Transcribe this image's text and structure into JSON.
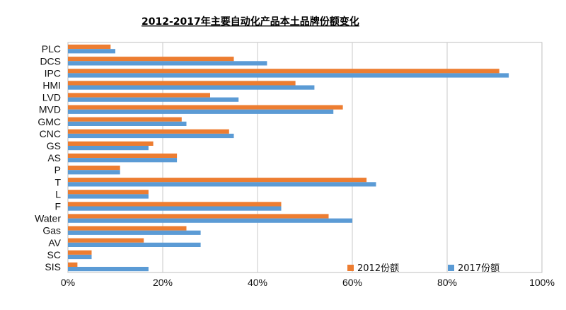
{
  "chart_data": {
    "type": "bar",
    "orientation": "horizontal",
    "title": "2012-2017年主要自动化产品本土品牌份额变化",
    "categories": [
      "PLC",
      "DCS",
      "IPC",
      "HMI",
      "LVD",
      "MVD",
      "GMC",
      "CNC",
      "GS",
      "AS",
      "P",
      "T",
      "L",
      "F",
      "Water",
      "Gas",
      "AV",
      "SC",
      "SIS"
    ],
    "series": [
      {
        "name": "2012份额",
        "color": "#ED7D31",
        "values": [
          9,
          35,
          91,
          48,
          30,
          58,
          24,
          34,
          18,
          23,
          11,
          63,
          17,
          45,
          55,
          25,
          16,
          5,
          2
        ]
      },
      {
        "name": "2017份额",
        "color": "#5B9BD5",
        "values": [
          10,
          42,
          93,
          52,
          36,
          56,
          25,
          35,
          17,
          23,
          11,
          65,
          17,
          45,
          60,
          28,
          28,
          5,
          17
        ]
      }
    ],
    "xlim": [
      0,
      100
    ],
    "xticks": [
      0,
      20,
      40,
      60,
      80,
      100
    ],
    "xtick_labels": [
      "0%",
      "20%",
      "40%",
      "60%",
      "80%",
      "100%"
    ],
    "grid": true,
    "legend_position": "bottom-right"
  }
}
